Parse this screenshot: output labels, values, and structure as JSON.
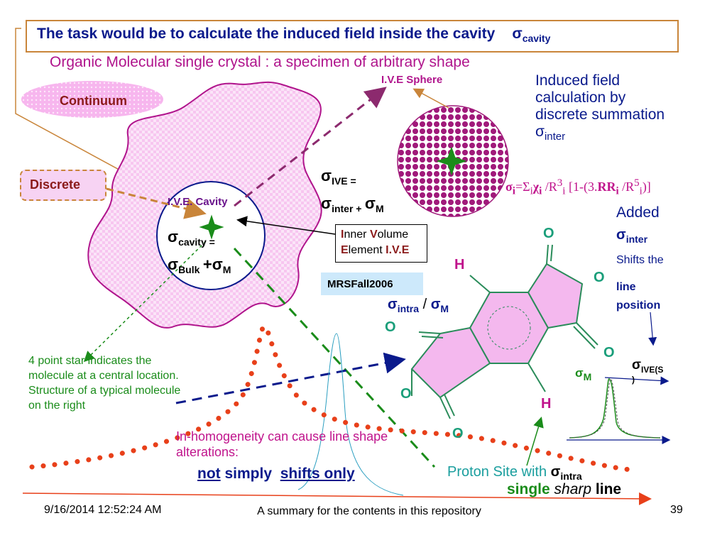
{
  "title": {
    "text": "The task would be to calculate the induced field inside the cavity",
    "sigma": "σ",
    "sigma_sub": "cavity"
  },
  "subtitle": "Organic Molecular single crystal : a specimen of arbitrary shape",
  "ive_sphere_label": "I.V.E Sphere",
  "induced_field": {
    "text": "Induced field calculation by discrete summation σ",
    "sub": "inter"
  },
  "continuum_label": "Continuum",
  "discrete_label": "Discrete",
  "cavity_label": "I.V.E. Cavity",
  "cavity_eq": {
    "sigma": "σ",
    "cavity_sub": "cavity =",
    "bulk_sub": "Bulk",
    "plus": "+σ",
    "m_sub": "M"
  },
  "ive_eq": {
    "sigma": "σ",
    "ive_sub": "IVE =",
    "inter_sub": "inter +",
    "m_sigma": "σ",
    "m_sub": "M"
  },
  "inner_volume": {
    "i": "I",
    "nner": "nner",
    "v": "V",
    "olume": "olume",
    "e": "E",
    "lement": "lement",
    "ive": "I.V.E"
  },
  "mrs_label": "MRSFall2006",
  "formula": {
    "sigma": "σ",
    "i1": "i",
    "eq": "=Σ",
    "i2": "i",
    "chi": "χ",
    "i3": "i",
    "r3": " /R",
    "exp3": "3",
    "i4": "i",
    "bracket": " [1-(3.",
    "rr": "RR",
    "i5": "i",
    "r5": " /R",
    "exp5": "5",
    "i6": "i",
    "end": ")]"
  },
  "added": {
    "added": "Added",
    "sigma": "σ",
    "inter_sub": "inter",
    "shifts": "Shifts the",
    "line": "line",
    "position": "position"
  },
  "intra_m": {
    "sigma1": "σ",
    "intra_sub": "intra",
    "slash": " / ",
    "sigma2": "σ",
    "m_sub": "M"
  },
  "molecule": {
    "o_top": "O",
    "o_right_up": "O",
    "o_right_down": "O",
    "o_left_up": "O",
    "o_left": "O",
    "o_bottom": "O",
    "h_top": "H",
    "h_bottom": "H"
  },
  "spectrum": {
    "sigma_m": "σ",
    "m_sub": "M",
    "sigma_ive": "σ",
    "ive_sub": "IVE(S",
    "ive_close": ")"
  },
  "four_point_text": "4 point star indicates the molecule at a central location. Structure of a typical molecule on the right",
  "inhomogeneity_text": "In-homogeneity can cause line shape alterations:",
  "not_simply": {
    "not": "not",
    "simply": " simply  ",
    "shifts_only": "shifts only"
  },
  "proton": {
    "text": "Proton Site with ",
    "sigma": "σ",
    "sub": "intra"
  },
  "single_line": {
    "single": "single ",
    "sharp": "sharp",
    "line": " line"
  },
  "footer": {
    "date": "9/16/2014 12:52:24 AM",
    "center": "A summary for the contents in this repository",
    "page": "39"
  },
  "colors": {
    "navy": "#0a1a8c",
    "magenta": "#c0148c",
    "green": "#1a8c1a",
    "orange": "#c9853a",
    "dot_red": "#e8401a",
    "pink_fill": "#f4b8ee"
  }
}
